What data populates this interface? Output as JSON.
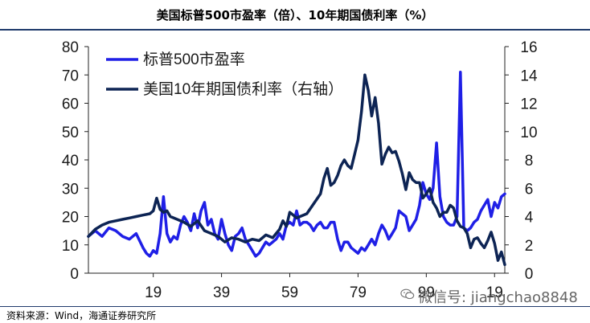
{
  "header": {
    "title": "美国标普500市盈率（倍）、10年期国债利率（%）"
  },
  "footer": {
    "source": "资料来源：Wind，海通证券研究所"
  },
  "watermark": {
    "text": "微信号: jiangchao8848"
  },
  "colors": {
    "pe": "#1f1fe6",
    "yield": "#0d2454",
    "frame": "#1f3a6b"
  },
  "chart_data": {
    "type": "line",
    "title": "美国标普500市盈率（倍）、10年期国债利率（%）",
    "xlim": [
      1900,
      2022
    ],
    "x_ticks": [
      {
        "x": 1919,
        "label": "19"
      },
      {
        "x": 1939,
        "label": "39"
      },
      {
        "x": 1959,
        "label": "59"
      },
      {
        "x": 1979,
        "label": "79"
      },
      {
        "x": 1999,
        "label": "99"
      },
      {
        "x": 2019,
        "label": "19"
      }
    ],
    "y_left": {
      "lim": [
        0,
        80
      ],
      "ticks": [
        0,
        10,
        20,
        30,
        40,
        50,
        60,
        70,
        80
      ]
    },
    "y_right": {
      "lim": [
        0,
        16
      ],
      "ticks": [
        0,
        2,
        4,
        6,
        8,
        10,
        12,
        14,
        16
      ]
    },
    "legend": {
      "position": "top-left"
    },
    "series": [
      {
        "name": "标普500市盈率",
        "axis": "left",
        "color": "#1f1fe6",
        "points": [
          [
            1900,
            13
          ],
          [
            1902,
            15
          ],
          [
            1904,
            13
          ],
          [
            1906,
            16
          ],
          [
            1908,
            15
          ],
          [
            1910,
            13
          ],
          [
            1912,
            12
          ],
          [
            1914,
            14
          ],
          [
            1916,
            9
          ],
          [
            1917,
            7
          ],
          [
            1918,
            6
          ],
          [
            1919,
            8
          ],
          [
            1920,
            7
          ],
          [
            1921,
            14
          ],
          [
            1922,
            27
          ],
          [
            1923,
            14
          ],
          [
            1924,
            11
          ],
          [
            1925,
            13
          ],
          [
            1926,
            12
          ],
          [
            1927,
            17
          ],
          [
            1928,
            20
          ],
          [
            1929,
            18
          ],
          [
            1930,
            15
          ],
          [
            1931,
            21
          ],
          [
            1932,
            16
          ],
          [
            1933,
            22
          ],
          [
            1934,
            25
          ],
          [
            1935,
            17
          ],
          [
            1936,
            19
          ],
          [
            1937,
            14
          ],
          [
            1938,
            12
          ],
          [
            1939,
            19
          ],
          [
            1940,
            14
          ],
          [
            1941,
            10
          ],
          [
            1942,
            8
          ],
          [
            1943,
            13
          ],
          [
            1944,
            14
          ],
          [
            1945,
            16
          ],
          [
            1946,
            12
          ],
          [
            1947,
            10
          ],
          [
            1948,
            8
          ],
          [
            1949,
            6
          ],
          [
            1950,
            7
          ],
          [
            1951,
            9
          ],
          [
            1952,
            11
          ],
          [
            1953,
            10
          ],
          [
            1954,
            11
          ],
          [
            1955,
            12
          ],
          [
            1956,
            14
          ],
          [
            1957,
            12
          ],
          [
            1958,
            17
          ],
          [
            1959,
            18
          ],
          [
            1960,
            17
          ],
          [
            1961,
            22
          ],
          [
            1962,
            17
          ],
          [
            1963,
            18
          ],
          [
            1964,
            18
          ],
          [
            1965,
            17
          ],
          [
            1966,
            15
          ],
          [
            1967,
            17
          ],
          [
            1968,
            18
          ],
          [
            1969,
            16
          ],
          [
            1970,
            16
          ],
          [
            1971,
            18
          ],
          [
            1972,
            18
          ],
          [
            1973,
            12
          ],
          [
            1974,
            8
          ],
          [
            1975,
            11
          ],
          [
            1976,
            11
          ],
          [
            1977,
            9
          ],
          [
            1978,
            8
          ],
          [
            1979,
            7
          ],
          [
            1980,
            9
          ],
          [
            1981,
            8
          ],
          [
            1982,
            10
          ],
          [
            1983,
            12
          ],
          [
            1984,
            10
          ],
          [
            1985,
            14
          ],
          [
            1986,
            17
          ],
          [
            1987,
            15
          ],
          [
            1988,
            12
          ],
          [
            1989,
            14
          ],
          [
            1990,
            16
          ],
          [
            1991,
            22
          ],
          [
            1992,
            21
          ],
          [
            1993,
            20
          ],
          [
            1994,
            15
          ],
          [
            1995,
            17
          ],
          [
            1996,
            19
          ],
          [
            1997,
            24
          ],
          [
            1998,
            32
          ],
          [
            1999,
            28
          ],
          [
            2000,
            26
          ],
          [
            2001,
            30
          ],
          [
            2002,
            46
          ],
          [
            2003,
            27
          ],
          [
            2004,
            20
          ],
          [
            2005,
            18
          ],
          [
            2006,
            17
          ],
          [
            2007,
            17
          ],
          [
            2008,
            20
          ],
          [
            2009,
            71
          ],
          [
            2010,
            16
          ],
          [
            2011,
            15
          ],
          [
            2012,
            16
          ],
          [
            2013,
            18
          ],
          [
            2014,
            19
          ],
          [
            2015,
            22
          ],
          [
            2016,
            24
          ],
          [
            2017,
            26
          ],
          [
            2018,
            20
          ],
          [
            2019,
            25
          ],
          [
            2020,
            23
          ],
          [
            2021,
            27
          ],
          [
            2022,
            28
          ]
        ]
      },
      {
        "name": "美国10年期国债利率（右轴）",
        "axis": "right",
        "color": "#0d2454",
        "points": [
          [
            1900,
            2.6
          ],
          [
            1902,
            3.1
          ],
          [
            1904,
            3.4
          ],
          [
            1906,
            3.6
          ],
          [
            1908,
            3.7
          ],
          [
            1910,
            3.8
          ],
          [
            1912,
            3.9
          ],
          [
            1914,
            4.0
          ],
          [
            1916,
            4.1
          ],
          [
            1918,
            4.2
          ],
          [
            1919,
            4.4
          ],
          [
            1920,
            5.3
          ],
          [
            1921,
            4.5
          ],
          [
            1922,
            4.3
          ],
          [
            1923,
            4.4
          ],
          [
            1924,
            4.0
          ],
          [
            1926,
            3.8
          ],
          [
            1928,
            3.6
          ],
          [
            1930,
            3.3
          ],
          [
            1932,
            3.7
          ],
          [
            1934,
            3.0
          ],
          [
            1936,
            2.8
          ],
          [
            1938,
            2.6
          ],
          [
            1940,
            2.2
          ],
          [
            1942,
            2.5
          ],
          [
            1944,
            2.4
          ],
          [
            1946,
            2.2
          ],
          [
            1948,
            2.4
          ],
          [
            1950,
            2.3
          ],
          [
            1952,
            2.7
          ],
          [
            1954,
            2.5
          ],
          [
            1956,
            3.1
          ],
          [
            1957,
            3.7
          ],
          [
            1958,
            3.3
          ],
          [
            1959,
            4.3
          ],
          [
            1960,
            4.1
          ],
          [
            1961,
            3.9
          ],
          [
            1962,
            4.0
          ],
          [
            1963,
            4.1
          ],
          [
            1964,
            4.2
          ],
          [
            1966,
            4.9
          ],
          [
            1968,
            5.6
          ],
          [
            1969,
            6.7
          ],
          [
            1970,
            7.4
          ],
          [
            1971,
            6.2
          ],
          [
            1972,
            6.4
          ],
          [
            1973,
            6.9
          ],
          [
            1974,
            7.6
          ],
          [
            1975,
            8.0
          ],
          [
            1976,
            7.6
          ],
          [
            1977,
            7.4
          ],
          [
            1978,
            8.4
          ],
          [
            1979,
            9.4
          ],
          [
            1980,
            11.4
          ],
          [
            1981,
            14.0
          ],
          [
            1982,
            12.9
          ],
          [
            1983,
            11.1
          ],
          [
            1984,
            12.4
          ],
          [
            1985,
            10.6
          ],
          [
            1986,
            7.7
          ],
          [
            1987,
            8.4
          ],
          [
            1988,
            8.9
          ],
          [
            1989,
            8.5
          ],
          [
            1990,
            8.6
          ],
          [
            1991,
            7.9
          ],
          [
            1992,
            7.0
          ],
          [
            1993,
            5.9
          ],
          [
            1994,
            7.1
          ],
          [
            1995,
            6.6
          ],
          [
            1996,
            6.4
          ],
          [
            1997,
            6.4
          ],
          [
            1998,
            5.3
          ],
          [
            1999,
            5.6
          ],
          [
            2000,
            6.0
          ],
          [
            2001,
            5.0
          ],
          [
            2002,
            4.6
          ],
          [
            2003,
            4.0
          ],
          [
            2004,
            4.3
          ],
          [
            2005,
            4.3
          ],
          [
            2006,
            4.8
          ],
          [
            2007,
            4.6
          ],
          [
            2008,
            3.7
          ],
          [
            2009,
            3.3
          ],
          [
            2010,
            3.2
          ],
          [
            2011,
            2.8
          ],
          [
            2012,
            1.8
          ],
          [
            2013,
            2.4
          ],
          [
            2014,
            2.5
          ],
          [
            2015,
            2.1
          ],
          [
            2016,
            1.8
          ],
          [
            2017,
            2.3
          ],
          [
            2018,
            2.9
          ],
          [
            2019,
            2.1
          ],
          [
            2020,
            0.9
          ],
          [
            2021,
            1.5
          ],
          [
            2022,
            0.6
          ]
        ]
      }
    ]
  }
}
